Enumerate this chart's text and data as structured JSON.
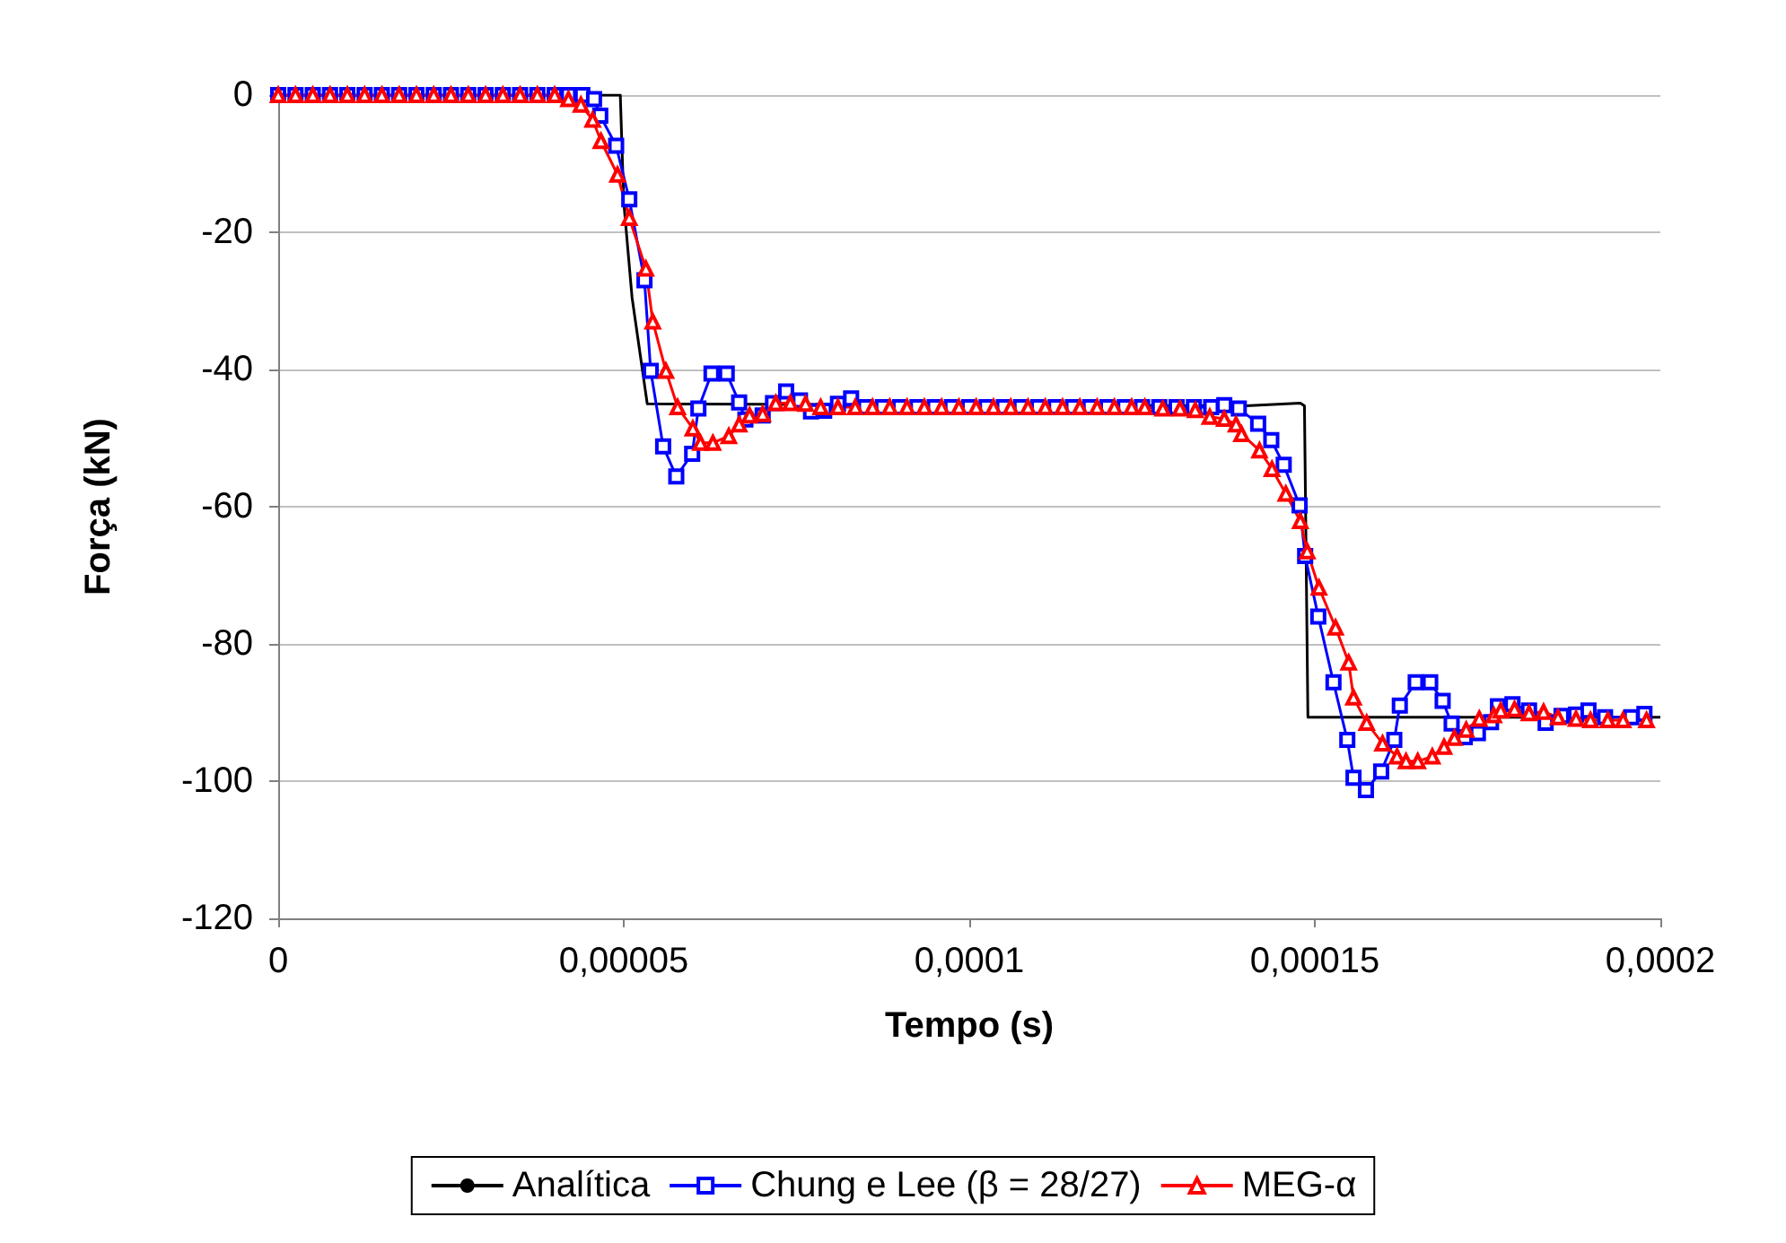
{
  "chart_data": {
    "type": "line",
    "xlabel": "Tempo (s)",
    "ylabel": "Força (kN)",
    "xlim": [
      0,
      0.0002
    ],
    "ylim": [
      -120,
      0
    ],
    "xticks": [
      0,
      {
        "value": 5e-05,
        "label": "0,00005"
      },
      {
        "value": 0.0001,
        "label": "0,0001"
      },
      {
        "value": 0.00015,
        "label": "0,00015"
      },
      {
        "value": 0.0002,
        "label": "0,0002"
      }
    ],
    "yticks": [
      -120,
      -100,
      -80,
      -60,
      -40,
      -20,
      0
    ],
    "grid": "y",
    "legend": "bottom",
    "series": [
      {
        "name": "Analítica",
        "color": "#000000",
        "marker": "none",
        "x": [
          0,
          4.95e-05,
          5e-05,
          5.12e-05,
          5.34e-05,
          0.00014,
          0.0001479,
          0.0001485,
          0.000149,
          0.0002
        ],
        "values": [
          0,
          0,
          -15.6,
          -29.5,
          -45,
          -45.3,
          -44.9,
          -45.3,
          -90.7,
          -90.7
        ]
      },
      {
        "name": "Chung e Lee (β = 28/27)",
        "color": "#0000ff",
        "marker": "square",
        "x": [
          0,
          2.5e-06,
          5e-06,
          7.5e-06,
          1e-05,
          1.25e-05,
          1.5e-05,
          1.75e-05,
          2e-05,
          2.25e-05,
          2.5e-05,
          2.75e-05,
          3e-05,
          3.25e-05,
          3.5e-05,
          3.75e-05,
          4e-05,
          4.2e-05,
          4.4e-05,
          4.57e-05,
          4.66e-05,
          4.89e-05,
          5.08e-05,
          5.3e-05,
          5.39e-05,
          5.57e-05,
          5.76e-05,
          5.99e-05,
          6.08e-05,
          6.27e-05,
          6.49e-05,
          6.67e-05,
          6.76e-05,
          7.01e-05,
          7.16e-05,
          7.35e-05,
          7.55e-05,
          7.71e-05,
          7.9e-05,
          8.1e-05,
          8.29e-05,
          8.5e-05,
          8.75e-05,
          9e-05,
          9.25e-05,
          9.5e-05,
          9.75e-05,
          0.0001,
          0.0001025,
          0.000105,
          0.0001075,
          0.00011,
          0.0001125,
          0.000115,
          0.0001175,
          0.00012,
          0.0001225,
          0.000125,
          0.0001275,
          0.00013,
          0.0001325,
          0.000135,
          0.0001369,
          0.000139,
          0.0001418,
          0.0001437,
          0.0001455,
          0.0001478,
          0.0001486,
          0.0001505,
          0.0001527,
          0.0001547,
          0.0001556,
          0.0001574,
          0.0001596,
          0.0001615,
          0.0001623,
          0.0001646,
          0.0001667,
          0.0001685,
          0.0001698,
          0.0001717,
          0.0001736,
          0.0001755,
          0.0001765,
          0.0001786,
          0.000181,
          0.0001834,
          0.0001857,
          0.0001878,
          0.0001896,
          0.000192,
          0.0001958,
          0.0001977
        ],
        "values": [
          0,
          0,
          0,
          0,
          0,
          0,
          0,
          0,
          0,
          0,
          0,
          0,
          0,
          0,
          0,
          0,
          0,
          0,
          0,
          -0.6,
          -3,
          -7.4,
          -15.2,
          -27,
          -40.2,
          -51.2,
          -55.6,
          -52.3,
          -45.7,
          -40.6,
          -40.6,
          -44.8,
          -47.3,
          -46.7,
          -44.9,
          -43.2,
          -44.5,
          -46.1,
          -46,
          -45,
          -44.2,
          -45.5,
          -45.5,
          -45.5,
          -45.5,
          -45.5,
          -45.5,
          -45.5,
          -45.5,
          -45.5,
          -45.5,
          -45.5,
          -45.5,
          -45.5,
          -45.5,
          -45.5,
          -45.5,
          -45.5,
          -45.5,
          -45.5,
          -45.5,
          -45.5,
          -45.2,
          -45.7,
          -47.9,
          -50.3,
          -53.9,
          -59.8,
          -67.2,
          -76,
          -85.6,
          -94,
          -99.5,
          -101.3,
          -98.6,
          -94,
          -89,
          -85.6,
          -85.6,
          -88.3,
          -91.6,
          -93.6,
          -93,
          -91.4,
          -89.1,
          -88.8,
          -89.7,
          -91.5,
          -90.5,
          -90.3,
          -89.7,
          -90.7,
          -90.7,
          -90.2
        ]
      },
      {
        "name": "MEG-α",
        "color": "#ff0000",
        "marker": "triangle",
        "x": [
          0,
          2.5e-06,
          5e-06,
          7.5e-06,
          1e-05,
          1.25e-05,
          1.5e-05,
          1.75e-05,
          2e-05,
          2.25e-05,
          2.5e-05,
          2.75e-05,
          3e-05,
          3.25e-05,
          3.5e-05,
          3.75e-05,
          4e-05,
          4.2e-05,
          4.38e-05,
          4.55e-05,
          4.67e-05,
          4.91e-05,
          5.08e-05,
          5.32e-05,
          5.42e-05,
          5.61e-05,
          5.78e-05,
          6e-05,
          6.11e-05,
          6.29e-05,
          6.52e-05,
          6.67e-05,
          6.82e-05,
          7.01e-05,
          7.2e-05,
          7.41e-05,
          7.63e-05,
          7.85e-05,
          8.1e-05,
          8.35e-05,
          8.6e-05,
          8.85e-05,
          9.1e-05,
          9.35e-05,
          9.6e-05,
          9.85e-05,
          0.000101,
          0.0001035,
          0.000106,
          0.0001085,
          0.000111,
          0.0001135,
          0.000116,
          0.0001185,
          0.000121,
          0.0001235,
          0.0001254,
          0.000128,
          0.0001305,
          0.0001327,
          0.0001348,
          0.0001369,
          0.0001386,
          0.0001394,
          0.000142,
          0.0001438,
          0.0001458,
          0.0001479,
          0.0001489,
          0.0001506,
          0.000153,
          0.0001549,
          0.0001556,
          0.0001575,
          0.0001598,
          0.0001619,
          0.0001632,
          0.0001649,
          0.000167,
          0.0001687,
          0.0001702,
          0.0001719,
          0.0001738,
          0.0001759,
          0.0001769,
          0.0001789,
          0.000181,
          0.0001831,
          0.0001852,
          0.0001878,
          0.0001899,
          0.0001924,
          0.0001946,
          0.000198
        ],
        "values": [
          0,
          0,
          0,
          0,
          0,
          0,
          0,
          0,
          0,
          0,
          0,
          0,
          0,
          0,
          0,
          0,
          0,
          -0.6,
          -1.4,
          -3.6,
          -6.7,
          -11.6,
          -17.9,
          -25.3,
          -33,
          -40.2,
          -45.5,
          -48.6,
          -50.7,
          -50.7,
          -49.7,
          -48,
          -46.7,
          -46.5,
          -44.9,
          -44.9,
          -45,
          -45.5,
          -45.5,
          -45.5,
          -45.5,
          -45.5,
          -45.5,
          -45.5,
          -45.5,
          -45.5,
          -45.5,
          -45.5,
          -45.5,
          -45.5,
          -45.5,
          -45.5,
          -45.5,
          -45.5,
          -45.5,
          -45.5,
          -45.5,
          -45.7,
          -45.7,
          -45.9,
          -46.9,
          -47.2,
          -48,
          -49.4,
          -51.8,
          -54.5,
          -58.1,
          -62.1,
          -66.5,
          -71.8,
          -77.6,
          -82.7,
          -87.8,
          -91.5,
          -94.5,
          -96.4,
          -97.1,
          -97.1,
          -96.4,
          -95,
          -93.7,
          -92.5,
          -90.9,
          -90.4,
          -89.7,
          -89.5,
          -90.1,
          -89.9,
          -90.7,
          -90.9,
          -91.1,
          -91.1,
          -91.1,
          -91.1
        ]
      }
    ]
  }
}
